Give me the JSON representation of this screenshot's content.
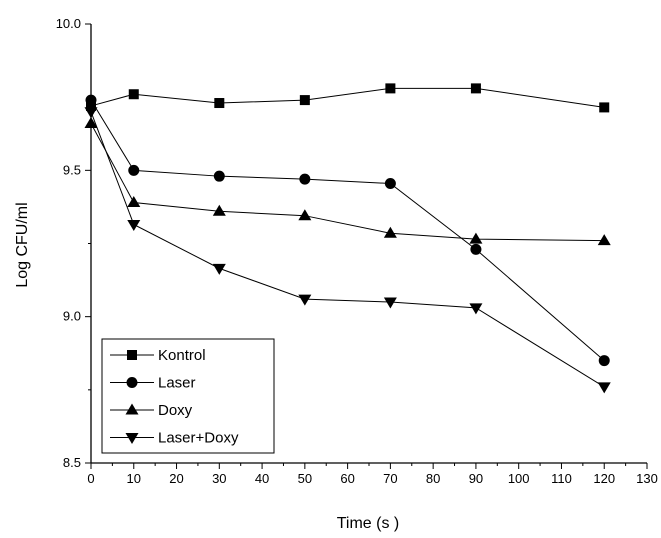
{
  "chart_data": {
    "type": "line",
    "xlabel": "Time (s )",
    "ylabel": "Log CFU/ml",
    "xlim": [
      0,
      130
    ],
    "ylim": [
      8.5,
      10.0
    ],
    "x_ticks": [
      0,
      10,
      20,
      30,
      40,
      50,
      60,
      70,
      80,
      90,
      100,
      110,
      120,
      130
    ],
    "y_ticks": [
      "8.5",
      "9.0",
      "9.5",
      "10.0"
    ],
    "grid": false,
    "legend_position": "bottom-left",
    "series": [
      {
        "name": "Kontrol",
        "marker": "square",
        "x": [
          0,
          10,
          30,
          50,
          70,
          90,
          120
        ],
        "values": [
          9.72,
          9.76,
          9.73,
          9.74,
          9.78,
          9.78,
          9.715
        ]
      },
      {
        "name": "Laser",
        "marker": "circle",
        "x": [
          0,
          10,
          30,
          50,
          70,
          90,
          120
        ],
        "values": [
          9.74,
          9.5,
          9.48,
          9.47,
          9.455,
          9.23,
          8.85
        ]
      },
      {
        "name": "Doxy",
        "marker": "triangle-up",
        "x": [
          0,
          10,
          30,
          50,
          70,
          90,
          120
        ],
        "values": [
          9.66,
          9.39,
          9.36,
          9.345,
          9.285,
          9.265,
          9.26
        ]
      },
      {
        "name": "Laser+Doxy",
        "marker": "triangle-down",
        "x": [
          0,
          10,
          30,
          50,
          70,
          90,
          120
        ],
        "values": [
          9.7,
          9.315,
          9.165,
          9.06,
          9.05,
          9.03,
          8.76
        ]
      }
    ]
  }
}
